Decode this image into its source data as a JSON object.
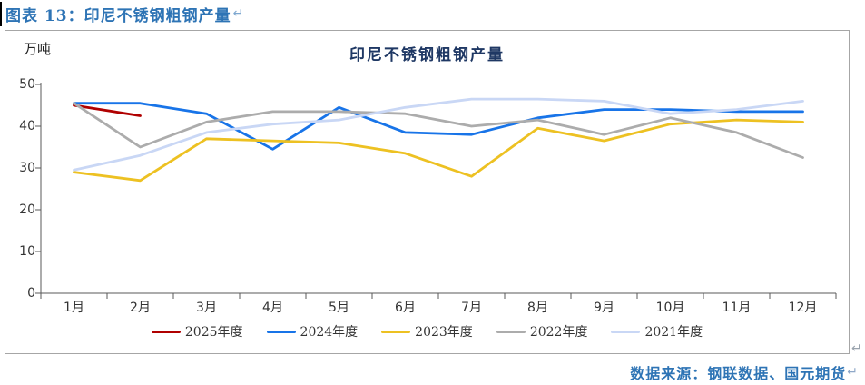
{
  "header": {
    "title": "图表 13：印尼不锈钢粗钢产量",
    "return_mark": "↵"
  },
  "figure_return_mark": "↵",
  "source": {
    "text": "数据来源：钢联数据、国元期货",
    "return_mark": "↵"
  },
  "colors": {
    "header_blue": "#2E74B5",
    "chart_title_navy": "#1F3864",
    "axis_line": "#595959",
    "border_gray": "#A6A6A6"
  },
  "chart_data": {
    "type": "line",
    "title": "印尼不锈钢粗钢产量",
    "unit": "万吨",
    "categories": [
      "1月",
      "2月",
      "3月",
      "4月",
      "5月",
      "6月",
      "7月",
      "8月",
      "9月",
      "10月",
      "11月",
      "12月"
    ],
    "ylim": [
      0,
      50
    ],
    "yticks": [
      0,
      10,
      20,
      30,
      40,
      50
    ],
    "grid": false,
    "legend_position": "bottom",
    "series": [
      {
        "name": "2025年度",
        "color": "#B00000",
        "values": [
          45,
          42.5,
          null,
          null,
          null,
          null,
          null,
          null,
          null,
          null,
          null,
          null
        ]
      },
      {
        "name": "2024年度",
        "color": "#1874E8",
        "values": [
          45.5,
          45.5,
          43,
          34.5,
          44.5,
          38.5,
          38,
          42,
          44,
          44,
          43.5,
          43.5
        ]
      },
      {
        "name": "2023年度",
        "color": "#EDC122",
        "values": [
          29,
          27,
          37,
          36.5,
          36,
          33.5,
          28,
          39.5,
          36.5,
          40.5,
          41.5,
          41
        ]
      },
      {
        "name": "2022年度",
        "color": "#ACACAC",
        "values": [
          45.5,
          35,
          41,
          43.5,
          43.5,
          43,
          40,
          41.5,
          38,
          42,
          38.5,
          32.5
        ]
      },
      {
        "name": "2021年度",
        "color": "#C9D7F5",
        "values": [
          29.5,
          33,
          38.5,
          40.5,
          41.5,
          44.5,
          46.5,
          46.5,
          46,
          43,
          44,
          46
        ]
      }
    ]
  }
}
